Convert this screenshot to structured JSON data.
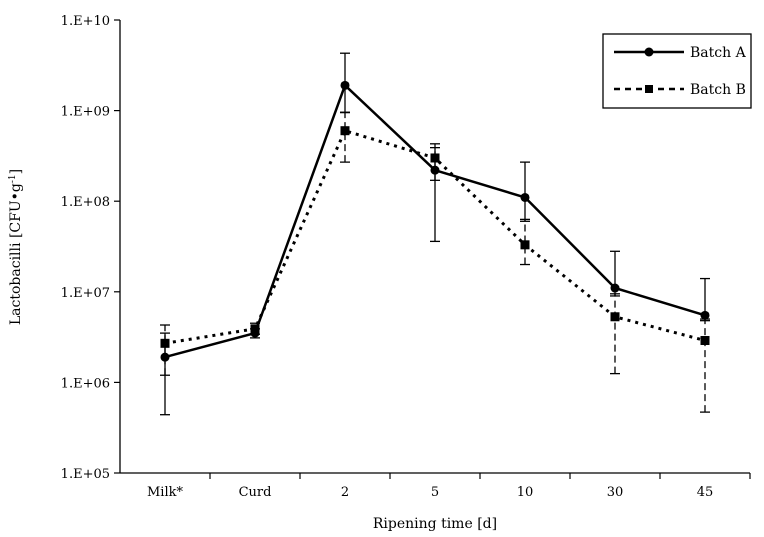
{
  "chart_data": {
    "type": "line",
    "title": "",
    "xlabel": "Ripening time [d]",
    "ylabel_main": "Lactobacilli [CFU•g",
    "ylabel_sup": "-1",
    "ylabel_end": "]",
    "yscale": "log",
    "ylim": [
      100000,
      10000000000
    ],
    "yticks": [
      {
        "value": 100000,
        "label": "1.E+05"
      },
      {
        "value": 1000000,
        "label": "1.E+06"
      },
      {
        "value": 10000000,
        "label": "1.E+07"
      },
      {
        "value": 100000000,
        "label": "1.E+08"
      },
      {
        "value": 1000000000,
        "label": "1.E+09"
      },
      {
        "value": 10000000000,
        "label": "1.E+10"
      }
    ],
    "categories": [
      "Milk*",
      "Curd",
      "2",
      "5",
      "10",
      "30",
      "45"
    ],
    "grid": false,
    "legend_position": "top-right",
    "series": [
      {
        "name": "Batch A",
        "marker": "circle",
        "line_style": "solid",
        "color": "#000000",
        "values": [
          1900000,
          3500000,
          1900000000,
          220000000,
          110000000,
          11000000,
          5500000
        ],
        "error": [
          [
            440000,
            3500000
          ],
          [
            3100000,
            3900000
          ],
          [
            950000000,
            4300000000
          ],
          [
            36000000,
            430000000
          ],
          [
            60000000,
            270000000
          ],
          [
            9000000,
            28000000
          ],
          [
            4800000,
            14000000
          ]
        ]
      },
      {
        "name": "Batch B",
        "marker": "square",
        "line_style": "dashed",
        "color": "#000000",
        "values": [
          2700000,
          3900000,
          600000000,
          300000000,
          33000000,
          5300000,
          2900000
        ],
        "error": [
          [
            1200000,
            4300000
          ],
          [
            3400000,
            4500000
          ],
          [
            270000000,
            960000000
          ],
          [
            170000000,
            390000000
          ],
          [
            20000000,
            63000000
          ],
          [
            1250000,
            9500000
          ],
          [
            470000,
            5000000
          ]
        ]
      }
    ]
  }
}
